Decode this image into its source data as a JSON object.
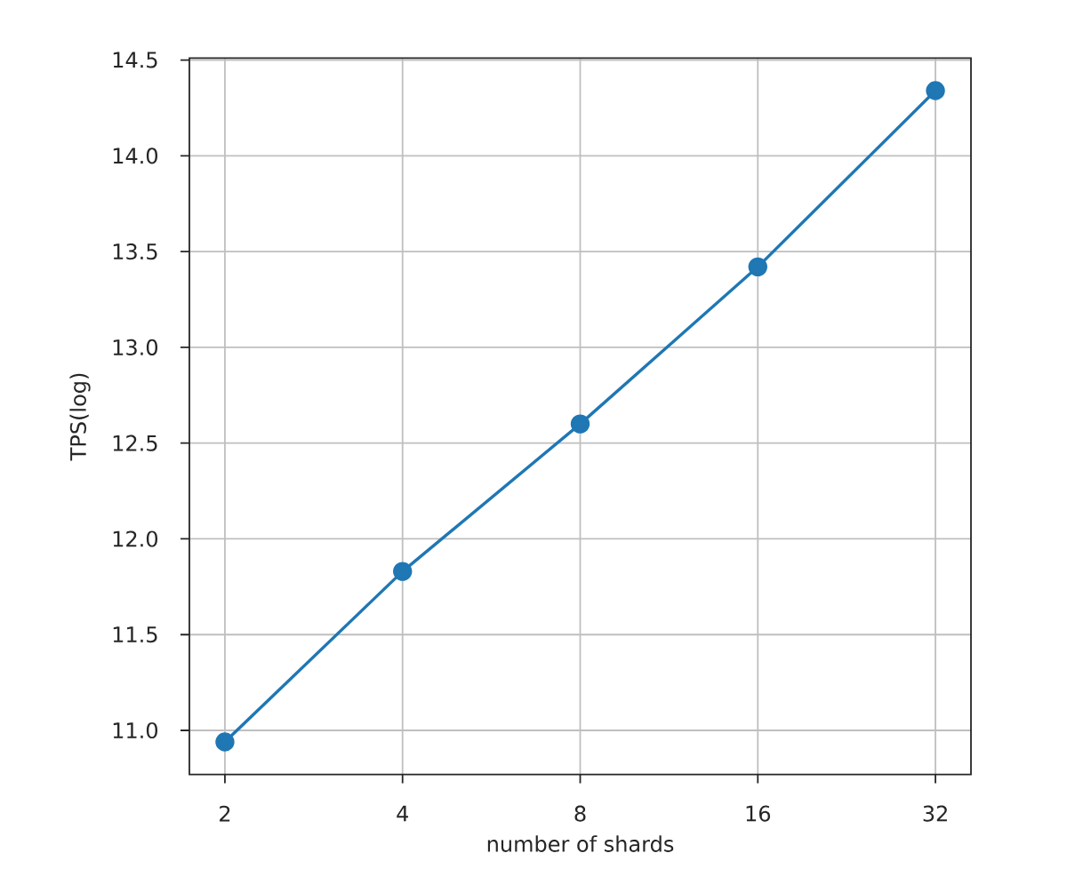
{
  "chart_data": {
    "type": "line",
    "xlabel": "number of shards",
    "ylabel": "TPS(log)",
    "categories": [
      "2",
      "4",
      "8",
      "16",
      "32"
    ],
    "values": [
      10.94,
      11.83,
      12.6,
      13.42,
      14.34
    ],
    "color": "#1f77b4",
    "ylim": [
      10.77,
      14.51
    ],
    "yticks": [
      {
        "value": 11,
        "label": "11.0"
      },
      {
        "value": 11.5,
        "label": "11.5"
      },
      {
        "value": 12,
        "label": "12.0"
      },
      {
        "value": 12.5,
        "label": "12.5"
      },
      {
        "value": 13,
        "label": "13.0"
      },
      {
        "value": 13.5,
        "label": "13.5"
      },
      {
        "value": 14,
        "label": "14.0"
      },
      {
        "value": 14.5,
        "label": "14.5"
      }
    ],
    "grid": true,
    "marker": "circle",
    "line_style": "solid"
  }
}
